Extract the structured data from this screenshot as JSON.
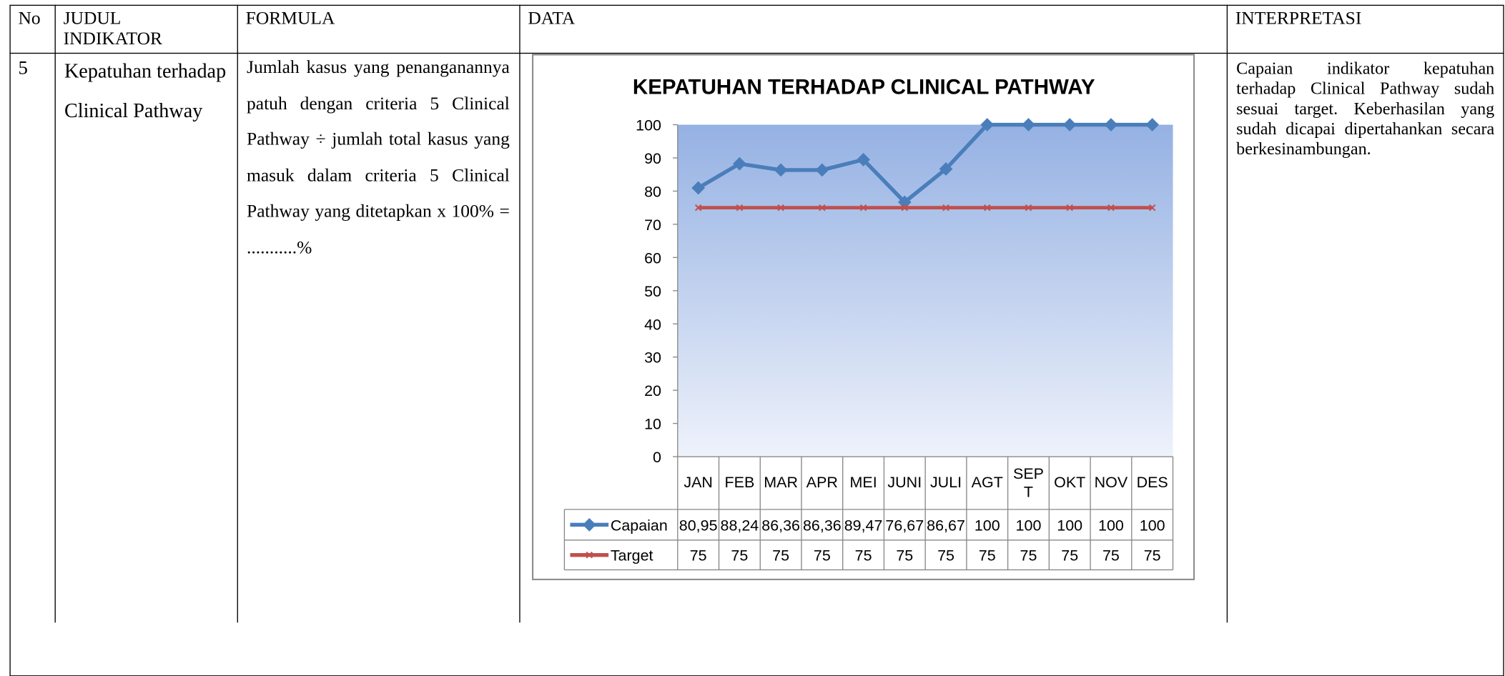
{
  "table": {
    "headers": [
      "No",
      "JUDUL INDIKATOR",
      "FORMULA",
      "DATA",
      "INTERPRETASI"
    ],
    "rows": [
      {
        "no": "5",
        "judul": "Kepatuhan terhadap Clinical Pathway",
        "formula": "Jumlah kasus yang penanganannya patuh dengan criteria 5 Clinical Pathway ÷ jumlah total kasus yang masuk dalam criteria 5 Clinical Pathway yang ditetapkan x 100% = ...........%",
        "interpretasi": "Capaian indikator kepatuhan terhadap Clinical Pathway sudah sesuai target. Keberhasilan yang sudah dicapai dipertahankan secara berkesinambungan."
      }
    ]
  },
  "chart_data": {
    "type": "line",
    "title": "KEPATUHAN TERHADAP CLINICAL PATHWAY",
    "categories": [
      "JAN",
      "FEB",
      "MAR",
      "APR",
      "MEI",
      "JUNI",
      "JULI",
      "AGT",
      "SEPT",
      "OKT",
      "NOV",
      "DES"
    ],
    "series": [
      {
        "name": "Capaian",
        "color": "#4a7ebb",
        "values": [
          80.95,
          88.24,
          86.36,
          86.36,
          89.47,
          76.67,
          86.67,
          100,
          100,
          100,
          100,
          100
        ],
        "value_labels": [
          "80,95",
          "88,24",
          "86,36",
          "86,36",
          "89,47",
          "76,67",
          "86,67",
          "100",
          "100",
          "100",
          "100",
          "100"
        ]
      },
      {
        "name": "Target",
        "color": "#c0504d",
        "values": [
          75,
          75,
          75,
          75,
          75,
          75,
          75,
          75,
          75,
          75,
          75,
          75
        ]
      }
    ],
    "ylim": [
      0,
      100
    ],
    "yticks": [
      0,
      10,
      20,
      30,
      40,
      50,
      60,
      70,
      80,
      90,
      100
    ]
  }
}
